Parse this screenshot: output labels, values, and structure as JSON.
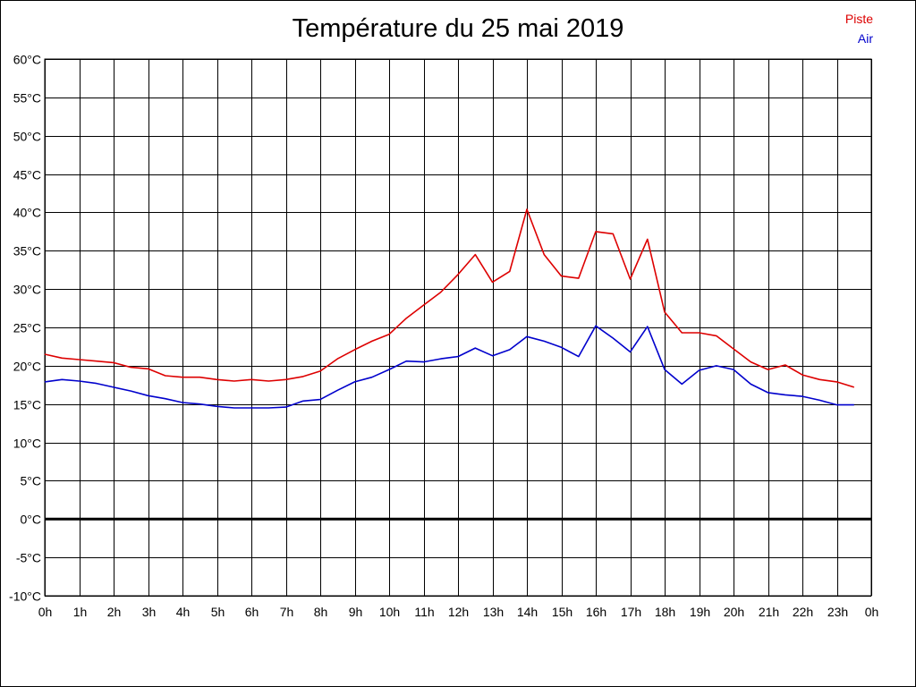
{
  "chart_data": {
    "type": "line",
    "title": "Température du 25 mai 2019",
    "xlabel": "",
    "ylabel": "",
    "x_unit": "hour",
    "xlim": [
      0,
      24
    ],
    "ylim": [
      -10,
      60
    ],
    "x_ticks": [
      0,
      1,
      2,
      3,
      4,
      5,
      6,
      7,
      8,
      9,
      10,
      11,
      12,
      13,
      14,
      15,
      16,
      17,
      18,
      19,
      20,
      21,
      22,
      23,
      24
    ],
    "x_tick_labels": [
      "0h",
      "1h",
      "2h",
      "3h",
      "4h",
      "5h",
      "6h",
      "7h",
      "8h",
      "9h",
      "10h",
      "11h",
      "12h",
      "13h",
      "14h",
      "15h",
      "16h",
      "17h",
      "18h",
      "19h",
      "20h",
      "21h",
      "22h",
      "23h",
      "0h"
    ],
    "y_ticks": [
      60,
      55,
      50,
      45,
      40,
      35,
      30,
      25,
      20,
      15,
      10,
      5,
      0,
      -5,
      -10
    ],
    "y_tick_labels": [
      "60°C",
      "55°C",
      "50°C",
      "45°C",
      "40°C",
      "35°C",
      "30°C",
      "25°C",
      "20°C",
      "15°C",
      "10°C",
      "5°C",
      "0°C",
      "-5°C",
      "-10°C"
    ],
    "grid": true,
    "zero_line": true,
    "legend_position": "top-right",
    "x": [
      0,
      0.5,
      1,
      1.5,
      2,
      2.5,
      3,
      3.5,
      4,
      4.5,
      5,
      5.5,
      6,
      6.5,
      7,
      7.5,
      8,
      8.5,
      9,
      9.5,
      10,
      10.5,
      11,
      11.5,
      12,
      12.5,
      13,
      13.5,
      14,
      14.5,
      15,
      15.5,
      16,
      16.5,
      17,
      17.5,
      18,
      18.5,
      19,
      19.5,
      20,
      20.5,
      21,
      21.5,
      22,
      22.5,
      23,
      23.5
    ],
    "series": [
      {
        "name": "Piste",
        "color": "#dd0000",
        "values": [
          21.5,
          21.0,
          20.8,
          20.6,
          20.4,
          19.8,
          19.6,
          18.7,
          18.5,
          18.5,
          18.2,
          18.0,
          18.2,
          18.0,
          18.2,
          18.6,
          19.3,
          20.9,
          22.1,
          23.2,
          24.1,
          26.2,
          27.9,
          29.6,
          31.9,
          34.5,
          30.9,
          32.3,
          40.4,
          34.5,
          31.7,
          31.4,
          37.5,
          37.2,
          31.3,
          36.5,
          27.0,
          24.3,
          24.3,
          23.9,
          22.2,
          20.5,
          19.5,
          20.1,
          18.8,
          18.2,
          17.9,
          17.2
        ]
      },
      {
        "name": "Air",
        "color": "#0000cc",
        "values": [
          17.9,
          18.2,
          18.0,
          17.7,
          17.2,
          16.7,
          16.1,
          15.7,
          15.2,
          15.0,
          14.7,
          14.5,
          14.5,
          14.5,
          14.6,
          15.4,
          15.6,
          16.8,
          17.9,
          18.5,
          19.5,
          20.6,
          20.5,
          20.9,
          21.2,
          22.3,
          21.3,
          22.1,
          23.8,
          23.2,
          22.4,
          21.2,
          25.2,
          23.6,
          21.8,
          25.1,
          19.5,
          17.6,
          19.4,
          20.0,
          19.5,
          17.6,
          16.5,
          16.2,
          16.0,
          15.5,
          14.9,
          14.9
        ]
      }
    ]
  }
}
